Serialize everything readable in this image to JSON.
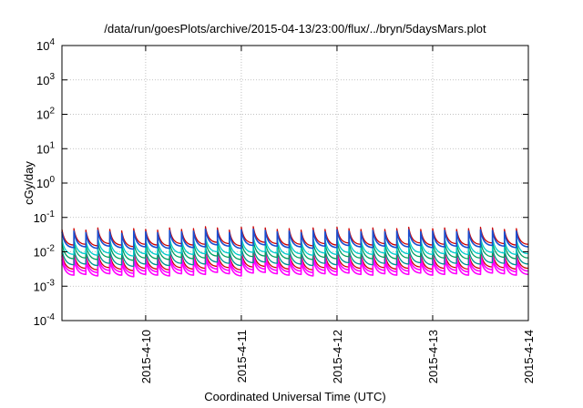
{
  "chart_data": {
    "type": "line",
    "title": "/data/run/goesPlots/archive/2015-04-13/23:00/flux/../bryn/5daysMars.plot",
    "xlabel": "Coordinated Universal Time (UTC)",
    "ylabel": "cGy/day",
    "yscale": "log",
    "ylim": [
      0.0001,
      10000
    ],
    "xlim": [
      "2015-04-09 03:00",
      "2015-04-14 00:00"
    ],
    "x_ticks": [
      "2015-4-10",
      "2015-4-11",
      "2015-4-12",
      "2015-4-13",
      "2015-4-14"
    ],
    "y_ticks": [
      {
        "base": "10",
        "exp": "4"
      },
      {
        "base": "10",
        "exp": "3"
      },
      {
        "base": "10",
        "exp": "2"
      },
      {
        "base": "10",
        "exp": "1"
      },
      {
        "base": "10",
        "exp": "0"
      },
      {
        "base": "10",
        "exp": "-1"
      },
      {
        "base": "10",
        "exp": "-2"
      },
      {
        "base": "10",
        "exp": "-3"
      },
      {
        "base": "10",
        "exp": "-4"
      }
    ],
    "grid": true,
    "sawtooth": {
      "sample_period_hours": 3,
      "peak_times": [
        "2015-04-09 03:00",
        "2015-04-09 06:00",
        "2015-04-09 09:00",
        "2015-04-09 12:00",
        "2015-04-09 15:00",
        "2015-04-09 18:00",
        "2015-04-09 21:00",
        "2015-04-10 00:00",
        "2015-04-10 03:00",
        "2015-04-10 06:00",
        "2015-04-10 09:00",
        "2015-04-10 12:00",
        "2015-04-10 15:00",
        "2015-04-10 18:00",
        "2015-04-10 21:00",
        "2015-04-11 00:00",
        "2015-04-11 03:00",
        "2015-04-11 06:00",
        "2015-04-11 09:00",
        "2015-04-11 12:00",
        "2015-04-11 15:00",
        "2015-04-11 18:00",
        "2015-04-11 21:00",
        "2015-04-12 00:00",
        "2015-04-12 03:00",
        "2015-04-12 06:00",
        "2015-04-12 09:00",
        "2015-04-12 12:00",
        "2015-04-12 15:00",
        "2015-04-12 18:00",
        "2015-04-12 21:00",
        "2015-04-13 00:00",
        "2015-04-13 03:00",
        "2015-04-13 06:00",
        "2015-04-13 09:00",
        "2015-04-13 12:00",
        "2015-04-13 15:00",
        "2015-04-13 18:00",
        "2015-04-13 21:00"
      ],
      "peak_factor": [
        1.0,
        1.05,
        0.95,
        1.1,
        1.0,
        0.9,
        1.05,
        1.0,
        0.95,
        1.1,
        1.0,
        1.05,
        1.2,
        1.1,
        0.95,
        1.15,
        1.2,
        1.1,
        1.0,
        1.05,
        0.95,
        1.1,
        1.0,
        1.15,
        1.05,
        1.0,
        1.1,
        1.0,
        1.05,
        1.15,
        1.0,
        1.05,
        1.1,
        1.0,
        1.05,
        1.15,
        1.1,
        1.0,
        1.05
      ],
      "trough_ratio": 0.35
    },
    "series": [
      {
        "color": "#ff00ff",
        "peak": 0.006,
        "stroke": 1.6
      },
      {
        "color": "#cc0000",
        "peak": 0.009,
        "stroke": 1.3
      },
      {
        "color": "#ff00ff",
        "peak": 0.0075,
        "stroke": 1.6
      },
      {
        "color": "#009090",
        "peak": 0.012,
        "stroke": 1.3
      },
      {
        "color": "#00a060",
        "peak": 0.018,
        "stroke": 1.3
      },
      {
        "color": "#00cccc",
        "peak": 0.024,
        "stroke": 1.3
      },
      {
        "color": "#cc0000",
        "peak": 0.045,
        "stroke": 1.3
      },
      {
        "color": "#1a4fd0",
        "peak": 0.038,
        "stroke": 1.6
      }
    ]
  }
}
